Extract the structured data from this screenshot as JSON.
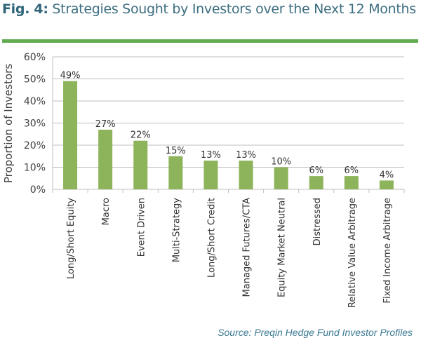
{
  "header": {
    "fig_label": "Fig. 4:",
    "title": "Strategies Sought by Investors over the Next 12 Months"
  },
  "source": "Source: Preqin Hedge Fund Investor Profiles",
  "colors": {
    "bar": "#8db45a",
    "rule": "#62ab4f",
    "title": "#3d6e80",
    "grid": "#bfbfbf",
    "source": "#3c7a94"
  },
  "chart_data": {
    "type": "bar",
    "title": "Strategies Sought by Investors over the Next 12 Months",
    "xlabel": "",
    "ylabel": "Proportion of Investors",
    "categories": [
      "Long/Short Equity",
      "Macro",
      "Event Driven",
      "Multi-Strategy",
      "Long/Short Credit",
      "Managed Futures/CTA",
      "Equity Market Neutral",
      "Distressed",
      "Relative Value Arbitrage",
      "Fixed Income Arbitrage"
    ],
    "values": [
      49,
      27,
      22,
      15,
      13,
      13,
      10,
      6,
      6,
      4
    ],
    "data_labels": [
      "49%",
      "27%",
      "22%",
      "15%",
      "13%",
      "13%",
      "10%",
      "6%",
      "6%",
      "4%"
    ],
    "ylim": [
      0,
      60
    ],
    "yticks": [
      0,
      10,
      20,
      30,
      40,
      50,
      60
    ],
    "ytick_labels": [
      "0%",
      "10%",
      "20%",
      "30%",
      "40%",
      "50%",
      "60%"
    ],
    "grid": true,
    "legend": "none"
  }
}
